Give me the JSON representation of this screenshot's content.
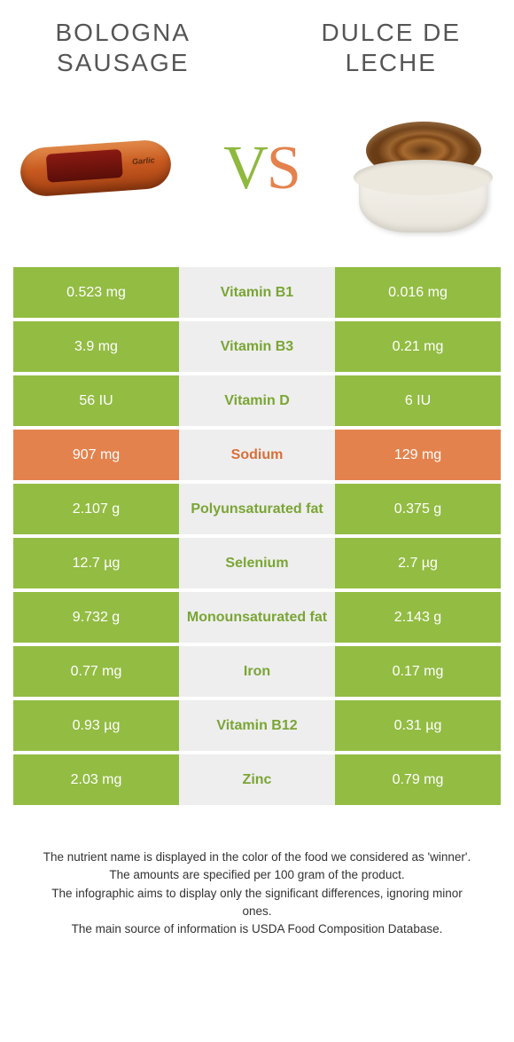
{
  "foodA": {
    "title": "BOLOGNA SAUSAGE"
  },
  "foodB": {
    "title": "DULCE DE LECHE"
  },
  "vs": {
    "left": "V",
    "right": "S"
  },
  "colors": {
    "green": "#93bc43",
    "orange": "#e4824e",
    "midBg": "#eeeeee",
    "greenText": "#7aa534",
    "orangeText": "#d86f3a"
  },
  "rows": [
    {
      "left": "0.523 mg",
      "label": "Vitamin B1",
      "right": "0.016 mg",
      "winner": "green"
    },
    {
      "left": "3.9 mg",
      "label": "Vitamin B3",
      "right": "0.21 mg",
      "winner": "green"
    },
    {
      "left": "56 IU",
      "label": "Vitamin D",
      "right": "6 IU",
      "winner": "green"
    },
    {
      "left": "907 mg",
      "label": "Sodium",
      "right": "129 mg",
      "winner": "orange"
    },
    {
      "left": "2.107 g",
      "label": "Polyunsaturated fat",
      "right": "0.375 g",
      "winner": "green"
    },
    {
      "left": "12.7 µg",
      "label": "Selenium",
      "right": "2.7 µg",
      "winner": "green"
    },
    {
      "left": "9.732 g",
      "label": "Monounsaturated fat",
      "right": "2.143 g",
      "winner": "green"
    },
    {
      "left": "0.77 mg",
      "label": "Iron",
      "right": "0.17 mg",
      "winner": "green"
    },
    {
      "left": "0.93 µg",
      "label": "Vitamin B12",
      "right": "0.31 µg",
      "winner": "green"
    },
    {
      "left": "2.03 mg",
      "label": "Zinc",
      "right": "0.79 mg",
      "winner": "green"
    }
  ],
  "footer": {
    "l1": "The nutrient name is displayed in the color of the food we considered as 'winner'.",
    "l2": "The amounts are specified per 100 gram of the product.",
    "l3": "The infographic aims to display only the significant differences, ignoring minor ones.",
    "l4": "The main source of information is USDA Food Composition Database."
  }
}
